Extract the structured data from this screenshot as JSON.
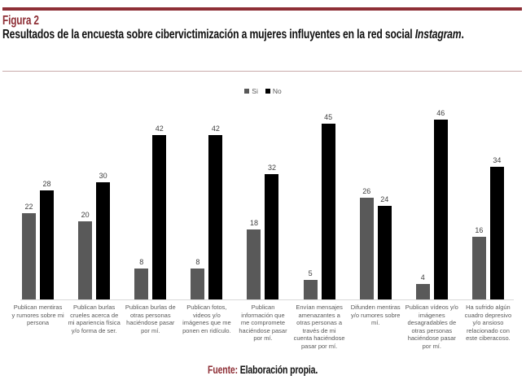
{
  "header": {
    "figure_label": "Figura 2",
    "title_prefix": "Resultados de la encuesta sobre cibervictimización a mujeres influyentes en la red social ",
    "title_italic": "Instagram",
    "title_suffix": "."
  },
  "footer": {
    "source_label": "Fuente:",
    "source_text": " Elaboración propia."
  },
  "colors": {
    "accent_red": "#8e2f36",
    "divider_line": "#c9abab",
    "bar_si": "#595959",
    "bar_no": "#000000",
    "value_label": "#404040",
    "category_label": "#595959",
    "axis_baseline": "#d9d9d9"
  },
  "chart_data": {
    "type": "bar",
    "title": "Resultados de la encuesta sobre cibervictimización a mujeres influyentes en la red social Instagram.",
    "xlabel": "",
    "ylabel": "",
    "ylim": [
      0,
      50
    ],
    "grid": false,
    "legend_position": "top-center",
    "legend": [
      "Si",
      "No"
    ],
    "categories": [
      "Publican mentiras y rumores sobre mi persona",
      "Publican burlas crueles acerca de mi apariencia física y/o forma de ser.",
      "Publican burlas de otras personas haciéndose pasar por mí.",
      "Publican fotos, videos y/o imágenes que me ponen en ridículo.",
      "Publican información que me compromete haciéndose pasar por mí.",
      "Envían mensajes amenazantes a otras personas a través de mi cuenta haciéndose pasar por mí.",
      "Difunden mentiras y/o rumores sobre mí.",
      "Publican vídeos y/o imágenes desagradables de otras personas haciéndose pasar por mí.",
      "Ha sufrido algún cuadro depresivo y/o ansioso relacionado con este ciberacoso."
    ],
    "series": [
      {
        "name": "Si",
        "color": "#595959",
        "values": [
          22,
          20,
          8,
          8,
          18,
          5,
          26,
          4,
          16
        ]
      },
      {
        "name": "No",
        "color": "#000000",
        "values": [
          28,
          30,
          42,
          42,
          32,
          45,
          24,
          46,
          34
        ]
      }
    ]
  }
}
